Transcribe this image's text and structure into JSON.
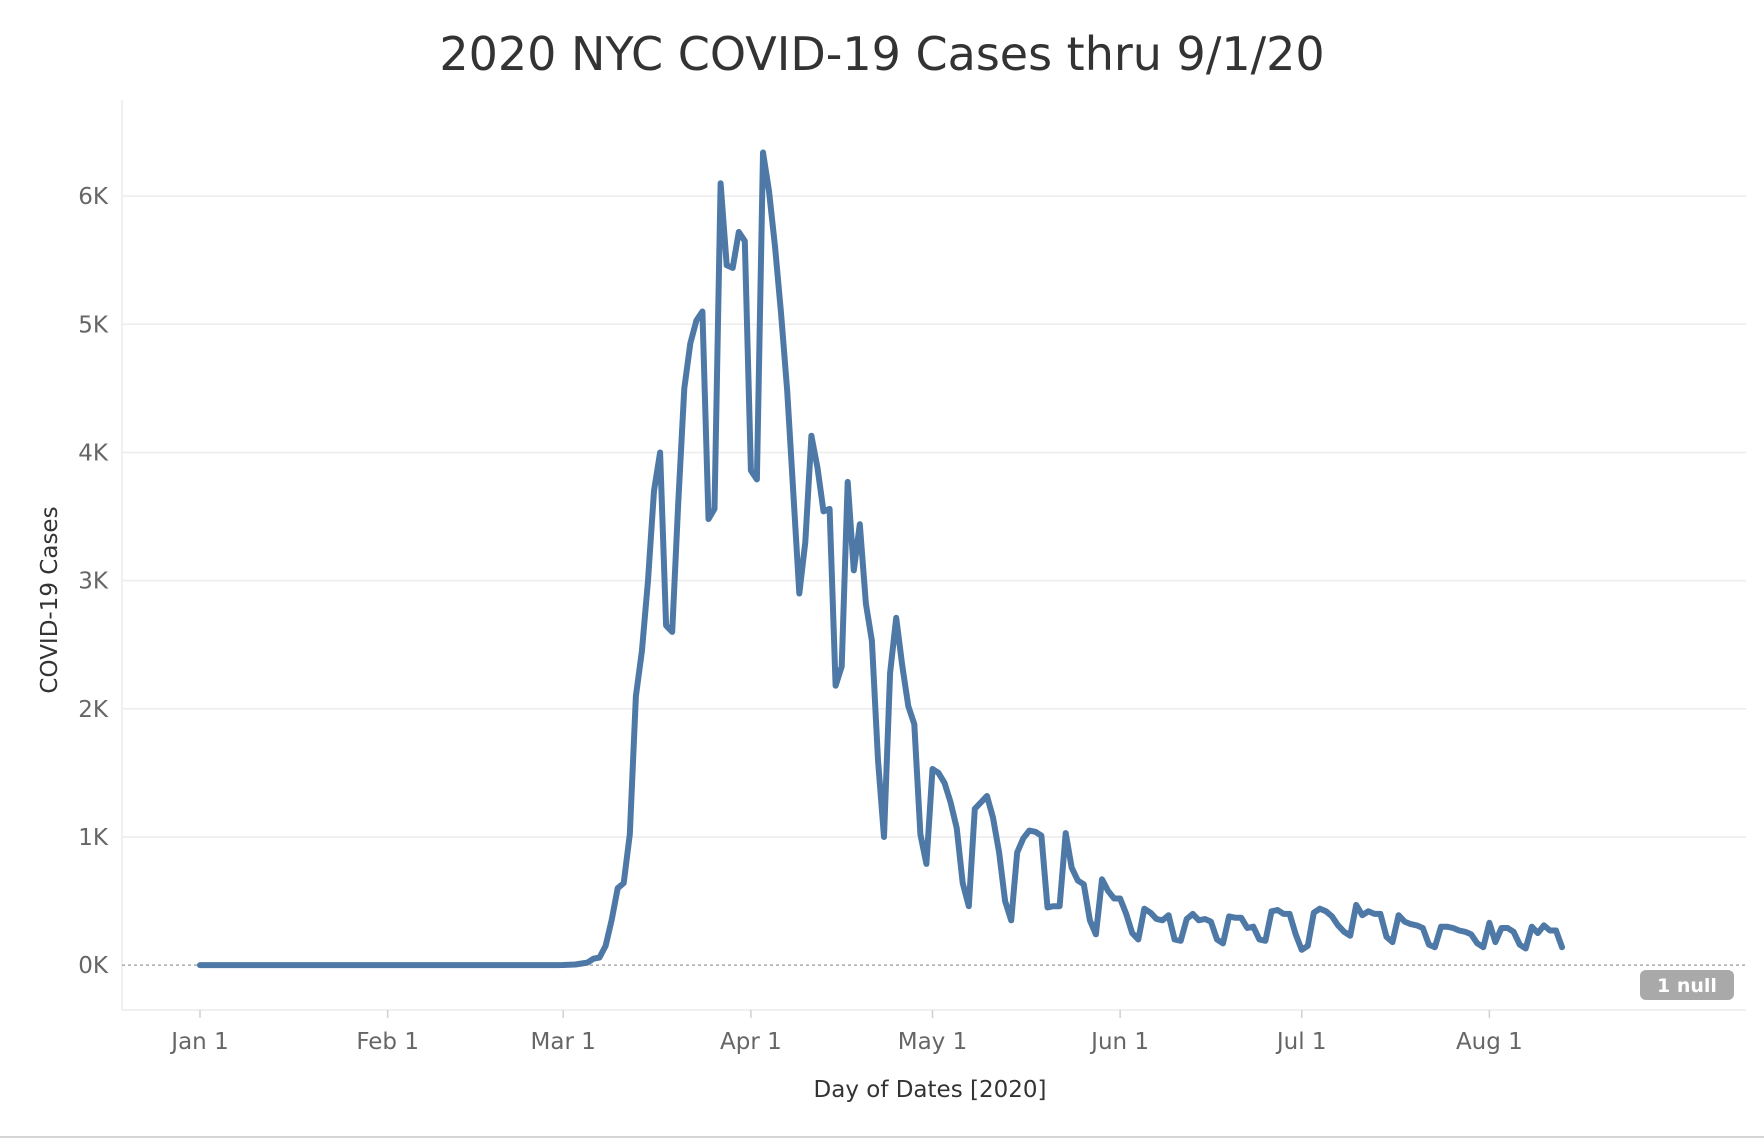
{
  "chart_data": {
    "type": "line",
    "title": "2020 NYC COVID-19 Cases thru 9/1/20",
    "xlabel": "Day of Dates [2020]",
    "ylabel": "COVID-19 Cases",
    "x_range": [
      "2020-01-01",
      "2020-08-31"
    ],
    "ylim": [
      -350,
      6750
    ],
    "y_ticks": [
      {
        "value": 0,
        "label": "0K"
      },
      {
        "value": 1000,
        "label": "1K"
      },
      {
        "value": 2000,
        "label": "2K"
      },
      {
        "value": 3000,
        "label": "3K"
      },
      {
        "value": 4000,
        "label": "4K"
      },
      {
        "value": 5000,
        "label": "5K"
      },
      {
        "value": 6000,
        "label": "6K"
      }
    ],
    "x_ticks": [
      {
        "date": "2020-01-01",
        "label": "Jan 1"
      },
      {
        "date": "2020-02-01",
        "label": "Feb 1"
      },
      {
        "date": "2020-03-01",
        "label": "Mar 1"
      },
      {
        "date": "2020-04-01",
        "label": "Apr 1"
      },
      {
        "date": "2020-05-01",
        "label": "May 1"
      },
      {
        "date": "2020-06-01",
        "label": "Jun 1"
      },
      {
        "date": "2020-07-01",
        "label": "Jul 1"
      },
      {
        "date": "2020-08-01",
        "label": "Aug 1"
      }
    ],
    "grid": true,
    "null_indicator": "1 null",
    "line_color": "#4e79a7",
    "series": [
      {
        "points": [
          [
            "2020-01-01",
            0
          ],
          [
            "2020-01-15",
            0
          ],
          [
            "2020-02-01",
            0
          ],
          [
            "2020-02-15",
            0
          ],
          [
            "2020-02-29",
            0
          ],
          [
            "2020-03-01",
            1
          ],
          [
            "2020-03-03",
            5
          ],
          [
            "2020-03-05",
            20
          ],
          [
            "2020-03-06",
            50
          ],
          [
            "2020-03-07",
            60
          ],
          [
            "2020-03-08",
            150
          ],
          [
            "2020-03-09",
            350
          ],
          [
            "2020-03-10",
            600
          ],
          [
            "2020-03-11",
            640
          ],
          [
            "2020-03-12",
            1020
          ],
          [
            "2020-03-13",
            2100
          ],
          [
            "2020-03-14",
            2450
          ],
          [
            "2020-03-15",
            3000
          ],
          [
            "2020-03-16",
            3700
          ],
          [
            "2020-03-17",
            4000
          ],
          [
            "2020-03-18",
            2650
          ],
          [
            "2020-03-19",
            2600
          ],
          [
            "2020-03-20",
            3600
          ],
          [
            "2020-03-21",
            4500
          ],
          [
            "2020-03-22",
            4850
          ],
          [
            "2020-03-23",
            5030
          ],
          [
            "2020-03-24",
            5100
          ],
          [
            "2020-03-25",
            3480
          ],
          [
            "2020-03-26",
            3560
          ],
          [
            "2020-03-27",
            6100
          ],
          [
            "2020-03-28",
            5460
          ],
          [
            "2020-03-29",
            5440
          ],
          [
            "2020-03-30",
            5720
          ],
          [
            "2020-03-31",
            5650
          ],
          [
            "2020-04-01",
            3860
          ],
          [
            "2020-04-02",
            3790
          ],
          [
            "2020-04-03",
            6340
          ],
          [
            "2020-04-04",
            6040
          ],
          [
            "2020-04-05",
            5600
          ],
          [
            "2020-04-06",
            5080
          ],
          [
            "2020-04-07",
            4480
          ],
          [
            "2020-04-08",
            3700
          ],
          [
            "2020-04-09",
            2900
          ],
          [
            "2020-04-10",
            3300
          ],
          [
            "2020-04-11",
            4130
          ],
          [
            "2020-04-12",
            3880
          ],
          [
            "2020-04-13",
            3540
          ],
          [
            "2020-04-14",
            3560
          ],
          [
            "2020-04-15",
            2180
          ],
          [
            "2020-04-16",
            2330
          ],
          [
            "2020-04-17",
            3770
          ],
          [
            "2020-04-18",
            3080
          ],
          [
            "2020-04-19",
            3440
          ],
          [
            "2020-04-20",
            2820
          ],
          [
            "2020-04-21",
            2530
          ],
          [
            "2020-04-22",
            1600
          ],
          [
            "2020-04-23",
            1000
          ],
          [
            "2020-04-24",
            2280
          ],
          [
            "2020-04-25",
            2710
          ],
          [
            "2020-04-26",
            2340
          ],
          [
            "2020-04-27",
            2020
          ],
          [
            "2020-04-28",
            1880
          ],
          [
            "2020-04-29",
            1020
          ],
          [
            "2020-04-30",
            790
          ],
          [
            "2020-05-01",
            1530
          ],
          [
            "2020-05-02",
            1500
          ],
          [
            "2020-05-03",
            1420
          ],
          [
            "2020-05-04",
            1270
          ],
          [
            "2020-05-05",
            1070
          ],
          [
            "2020-05-06",
            640
          ],
          [
            "2020-05-07",
            460
          ],
          [
            "2020-05-08",
            1220
          ],
          [
            "2020-05-09",
            1270
          ],
          [
            "2020-05-10",
            1320
          ],
          [
            "2020-05-11",
            1150
          ],
          [
            "2020-05-12",
            880
          ],
          [
            "2020-05-13",
            500
          ],
          [
            "2020-05-14",
            350
          ],
          [
            "2020-05-15",
            880
          ],
          [
            "2020-05-16",
            990
          ],
          [
            "2020-05-17",
            1050
          ],
          [
            "2020-05-18",
            1040
          ],
          [
            "2020-05-19",
            1010
          ],
          [
            "2020-05-20",
            450
          ],
          [
            "2020-05-21",
            460
          ],
          [
            "2020-05-22",
            460
          ],
          [
            "2020-05-23",
            1030
          ],
          [
            "2020-05-24",
            760
          ],
          [
            "2020-05-25",
            660
          ],
          [
            "2020-05-26",
            630
          ],
          [
            "2020-05-27",
            350
          ],
          [
            "2020-05-28",
            240
          ],
          [
            "2020-05-29",
            670
          ],
          [
            "2020-05-30",
            580
          ],
          [
            "2020-05-31",
            520
          ],
          [
            "2020-06-01",
            520
          ],
          [
            "2020-06-02",
            400
          ],
          [
            "2020-06-03",
            250
          ],
          [
            "2020-06-04",
            200
          ],
          [
            "2020-06-05",
            440
          ],
          [
            "2020-06-06",
            410
          ],
          [
            "2020-06-07",
            360
          ],
          [
            "2020-06-08",
            350
          ],
          [
            "2020-06-09",
            390
          ],
          [
            "2020-06-10",
            200
          ],
          [
            "2020-06-11",
            190
          ],
          [
            "2020-06-12",
            360
          ],
          [
            "2020-06-13",
            400
          ],
          [
            "2020-06-14",
            350
          ],
          [
            "2020-06-15",
            360
          ],
          [
            "2020-06-16",
            340
          ],
          [
            "2020-06-17",
            200
          ],
          [
            "2020-06-18",
            170
          ],
          [
            "2020-06-19",
            380
          ],
          [
            "2020-06-20",
            370
          ],
          [
            "2020-06-21",
            370
          ],
          [
            "2020-06-22",
            290
          ],
          [
            "2020-06-23",
            300
          ],
          [
            "2020-06-24",
            200
          ],
          [
            "2020-06-25",
            190
          ],
          [
            "2020-06-26",
            420
          ],
          [
            "2020-06-27",
            430
          ],
          [
            "2020-06-28",
            400
          ],
          [
            "2020-06-29",
            400
          ],
          [
            "2020-06-30",
            240
          ],
          [
            "2020-07-01",
            120
          ],
          [
            "2020-07-02",
            150
          ],
          [
            "2020-07-03",
            410
          ],
          [
            "2020-07-04",
            440
          ],
          [
            "2020-07-05",
            420
          ],
          [
            "2020-07-06",
            380
          ],
          [
            "2020-07-07",
            310
          ],
          [
            "2020-07-08",
            260
          ],
          [
            "2020-07-09",
            230
          ],
          [
            "2020-07-10",
            470
          ],
          [
            "2020-07-11",
            390
          ],
          [
            "2020-07-12",
            420
          ],
          [
            "2020-07-13",
            400
          ],
          [
            "2020-07-14",
            400
          ],
          [
            "2020-07-15",
            220
          ],
          [
            "2020-07-16",
            180
          ],
          [
            "2020-07-17",
            390
          ],
          [
            "2020-07-18",
            340
          ],
          [
            "2020-07-19",
            320
          ],
          [
            "2020-07-20",
            310
          ],
          [
            "2020-07-21",
            290
          ],
          [
            "2020-07-22",
            160
          ],
          [
            "2020-07-23",
            140
          ],
          [
            "2020-07-24",
            300
          ],
          [
            "2020-07-25",
            300
          ],
          [
            "2020-07-26",
            290
          ],
          [
            "2020-07-27",
            270
          ],
          [
            "2020-07-28",
            260
          ],
          [
            "2020-07-29",
            240
          ],
          [
            "2020-07-30",
            170
          ],
          [
            "2020-07-31",
            140
          ],
          [
            "2020-08-01",
            330
          ],
          [
            "2020-08-02",
            180
          ],
          [
            "2020-08-03",
            290
          ],
          [
            "2020-08-04",
            290
          ],
          [
            "2020-08-05",
            260
          ],
          [
            "2020-08-06",
            160
          ],
          [
            "2020-08-07",
            130
          ],
          [
            "2020-08-08",
            300
          ],
          [
            "2020-08-09",
            250
          ],
          [
            "2020-08-10",
            310
          ],
          [
            "2020-08-11",
            270
          ],
          [
            "2020-08-12",
            270
          ],
          [
            "2020-08-13",
            140
          ]
        ]
      }
    ]
  }
}
